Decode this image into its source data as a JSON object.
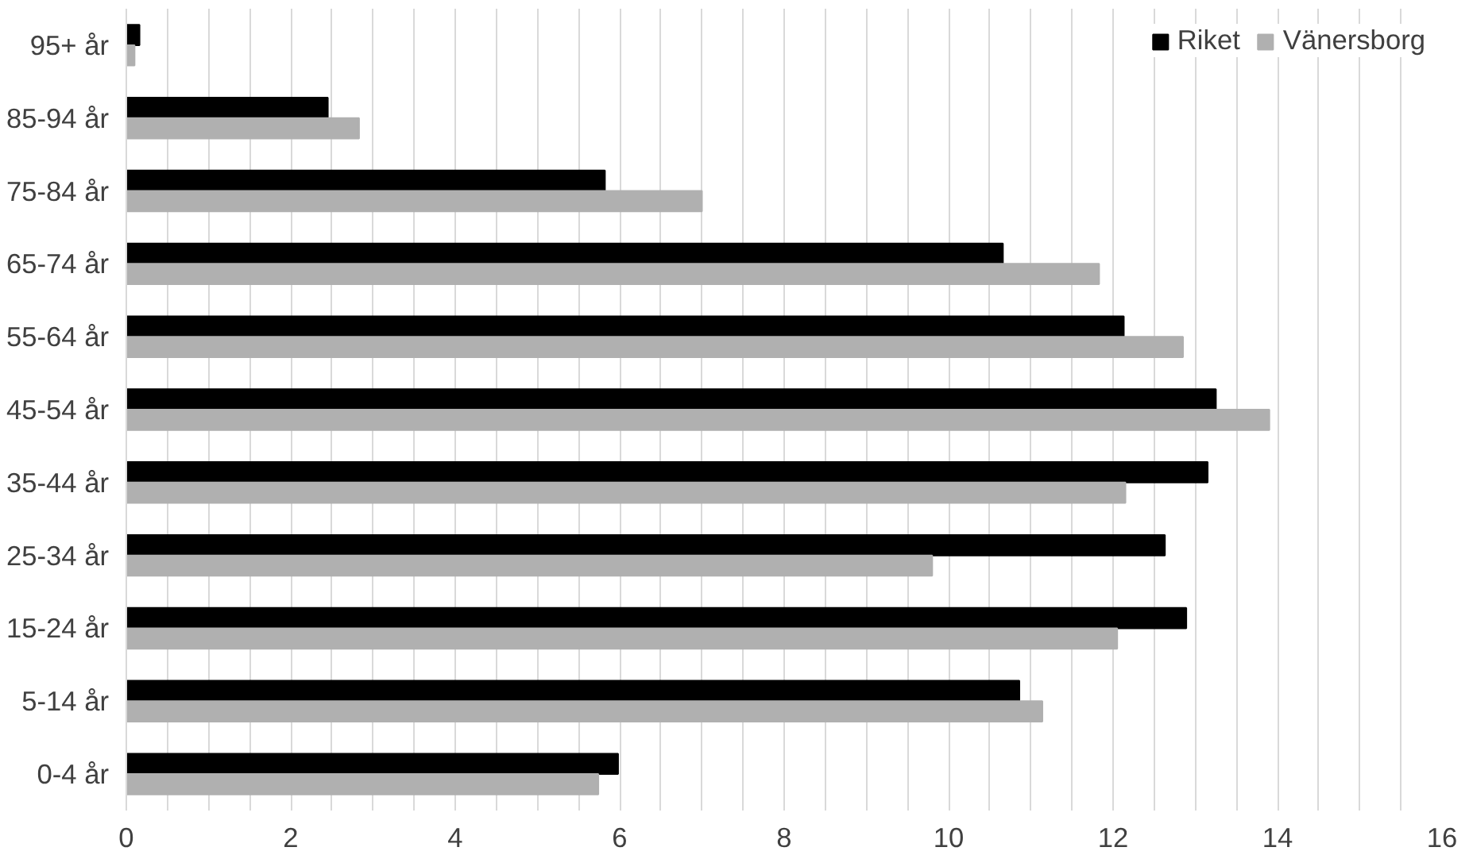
{
  "chart_data": {
    "type": "bar",
    "orientation": "horizontal",
    "categories": [
      "95+ år",
      "85-94 år",
      "75-84 år",
      "65-74 år",
      "55-64 år",
      "45-54 år",
      "35-44 år",
      "25-34 år",
      "15-24 år",
      "5-14 år",
      "0-4 år"
    ],
    "series": [
      {
        "name": "Riket",
        "color": "#000000",
        "values": [
          0.16,
          2.45,
          5.82,
          10.66,
          12.13,
          13.25,
          13.15,
          12.63,
          12.89,
          10.86,
          5.98
        ]
      },
      {
        "name": "Vänersborg",
        "color": "#b0b0b0",
        "values": [
          0.1,
          2.83,
          7.0,
          11.83,
          12.85,
          13.9,
          12.15,
          9.8,
          12.05,
          11.14,
          5.74
        ]
      }
    ],
    "xlim": [
      0,
      16
    ],
    "xticks": [
      0,
      {
        "value": 0.5,
        "label": null
      },
      2,
      {
        "value": 1,
        "label": null
      },
      {
        "value": 1.5,
        "label": null
      },
      {
        "value": 2.5,
        "label": null
      },
      {
        "value": 3,
        "label": null
      },
      {
        "value": 3.5,
        "label": null
      },
      4,
      {
        "value": 4.5,
        "label": null
      },
      {
        "value": 5,
        "label": null
      },
      {
        "value": 5.5,
        "label": null
      },
      6,
      {
        "value": 6.5,
        "label": null
      },
      {
        "value": 7,
        "label": null
      },
      {
        "value": 7.5,
        "label": null
      },
      8,
      {
        "value": 8.5,
        "label": null
      },
      {
        "value": 9,
        "label": null
      },
      {
        "value": 9.5,
        "label": null
      },
      10,
      {
        "value": 10.5,
        "label": null
      },
      {
        "value": 11,
        "label": null
      },
      {
        "value": 11.5,
        "label": null
      },
      12,
      {
        "value": 12.5,
        "label": null
      },
      {
        "value": 13,
        "label": null
      },
      {
        "value": 13.5,
        "label": null
      },
      14,
      {
        "value": 14.5,
        "label": null
      },
      {
        "value": 15,
        "label": null
      },
      {
        "value": 15.5,
        "label": null
      },
      16
    ],
    "grid": "x",
    "legend": "top right"
  }
}
